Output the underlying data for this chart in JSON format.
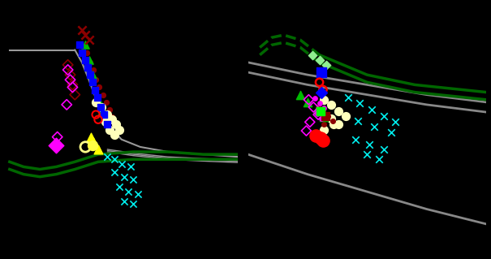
{
  "background_color": "#000000",
  "fig_size": [
    6.05,
    3.19
  ],
  "dpi": 100
}
